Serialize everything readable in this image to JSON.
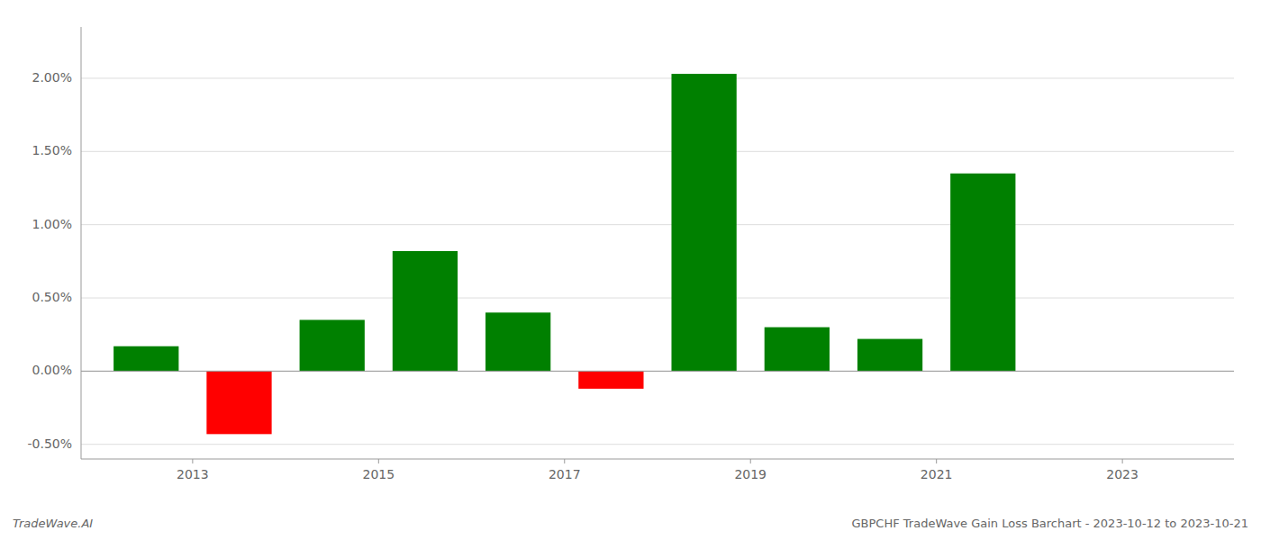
{
  "chart_data": {
    "type": "bar",
    "x": [
      2012.5,
      2013.5,
      2014.5,
      2015.5,
      2016.5,
      2017.5,
      2018.5,
      2019.5,
      2020.5,
      2021.5
    ],
    "values": [
      0.0017,
      -0.0043,
      0.0035,
      0.0082,
      0.004,
      -0.0012,
      0.0203,
      0.003,
      0.0022,
      0.0135
    ],
    "colors": [
      "#008000",
      "#ff0000",
      "#008000",
      "#008000",
      "#008000",
      "#ff0000",
      "#008000",
      "#008000",
      "#008000",
      "#008000"
    ],
    "xlim": [
      2011.8,
      2024.2
    ],
    "xticks": [
      2013,
      2015,
      2017,
      2019,
      2021,
      2023
    ],
    "ylim": [
      -0.006,
      0.0235
    ],
    "yticks": [
      {
        "value": -0.005,
        "label": "-0.50%"
      },
      {
        "value": 0.0,
        "label": "0.00%"
      },
      {
        "value": 0.005,
        "label": "0.50%"
      },
      {
        "value": 0.01,
        "label": "1.00%"
      },
      {
        "value": 0.015,
        "label": "1.50%"
      },
      {
        "value": 0.02,
        "label": "2.00%"
      }
    ],
    "grid": true,
    "annotations": [
      "TradeWave.AI",
      "GBPCHF TradeWave Gain Loss Barchart - 2023-10-12 to 2023-10-21"
    ]
  }
}
